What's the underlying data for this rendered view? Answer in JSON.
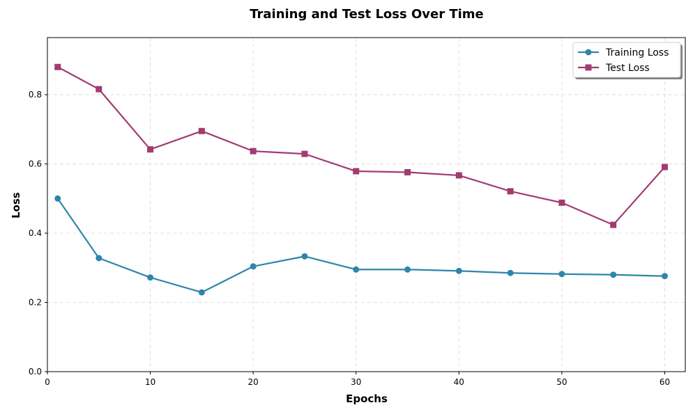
{
  "chart_data": {
    "type": "line",
    "title": "Training and Test Loss Over Time",
    "xlabel": "Epochs",
    "ylabel": "Loss",
    "xlim": [
      0,
      62
    ],
    "ylim": [
      0,
      0.965
    ],
    "xticks": [
      0,
      10,
      20,
      30,
      40,
      50,
      60
    ],
    "yticks": [
      0.0,
      0.2,
      0.4,
      0.6,
      0.8
    ],
    "grid": true,
    "legend_position": "top-right",
    "x": [
      1,
      5,
      10,
      15,
      20,
      25,
      30,
      35,
      40,
      45,
      50,
      55,
      60
    ],
    "series": [
      {
        "name": "Training Loss",
        "color": "#2e86ab",
        "marker": "circle",
        "values": [
          0.5,
          0.328,
          0.272,
          0.229,
          0.304,
          0.333,
          0.295,
          0.295,
          0.291,
          0.285,
          0.282,
          0.28,
          0.276
        ]
      },
      {
        "name": "Test Loss",
        "color": "#a23b72",
        "marker": "square",
        "values": [
          0.88,
          0.816,
          0.642,
          0.695,
          0.637,
          0.629,
          0.579,
          0.576,
          0.567,
          0.521,
          0.488,
          0.424,
          0.591
        ]
      }
    ]
  }
}
